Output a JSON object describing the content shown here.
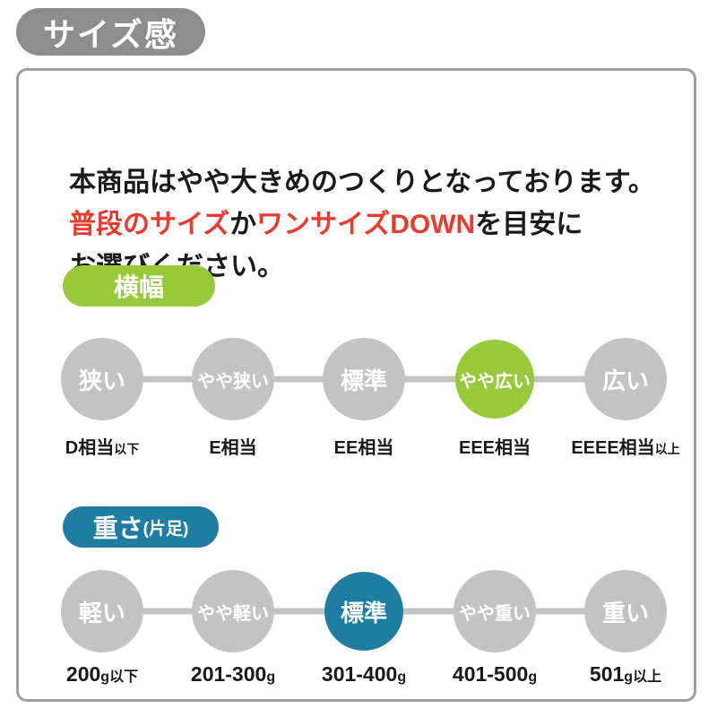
{
  "header": {
    "badge": "サイズ感"
  },
  "intro": {
    "lines": [
      [
        {
          "text": "本商品はやや大きめのつくりとなっております。",
          "red": false
        }
      ],
      [
        {
          "text": "普段のサイズ",
          "red": true
        },
        {
          "text": "か",
          "red": false
        },
        {
          "text": "ワンサイズDOWN",
          "red": true
        },
        {
          "text": "を目安に",
          "red": false
        }
      ],
      [
        {
          "text": "お選びください。",
          "red": false
        }
      ]
    ]
  },
  "colors": {
    "badge_gray": "#8d8d8d",
    "circle_gray": "#c3c3c3",
    "border_gray": "#9e9e9e",
    "accent_green": "#97c93b",
    "accent_blue": "#1f7da3",
    "red_text": "#e83a2d",
    "text_black": "#1a1a1a"
  },
  "scales": [
    {
      "title": "横幅",
      "title_sub": "",
      "accent": "#97c93b",
      "items": [
        {
          "label": "狭い",
          "value_main": "D相当",
          "value_small": "以下",
          "highlighted": false
        },
        {
          "label": "やや狭い",
          "value_main": "E相当",
          "value_small": "",
          "highlighted": false
        },
        {
          "label": "標準",
          "value_main": "EE相当",
          "value_small": "",
          "highlighted": false
        },
        {
          "label": "やや広い",
          "value_main": "EEE相当",
          "value_small": "",
          "highlighted": true
        },
        {
          "label": "広い",
          "value_main": "EEEE相当",
          "value_small": "以上",
          "highlighted": false
        }
      ]
    },
    {
      "title": "重さ",
      "title_sub": "(片足)",
      "accent": "#1f7da3",
      "items": [
        {
          "label": "軽い",
          "value_main": "200",
          "value_small": "g以下",
          "highlighted": false
        },
        {
          "label": "やや軽い",
          "value_main": "201-300",
          "value_small": "g",
          "highlighted": false
        },
        {
          "label": "標準",
          "value_main": "301-400",
          "value_small": "g",
          "highlighted": true
        },
        {
          "label": "やや重い",
          "value_main": "401-500",
          "value_small": "g",
          "highlighted": false
        },
        {
          "label": "重い",
          "value_main": "501",
          "value_small": "g以上",
          "highlighted": false
        }
      ]
    }
  ]
}
